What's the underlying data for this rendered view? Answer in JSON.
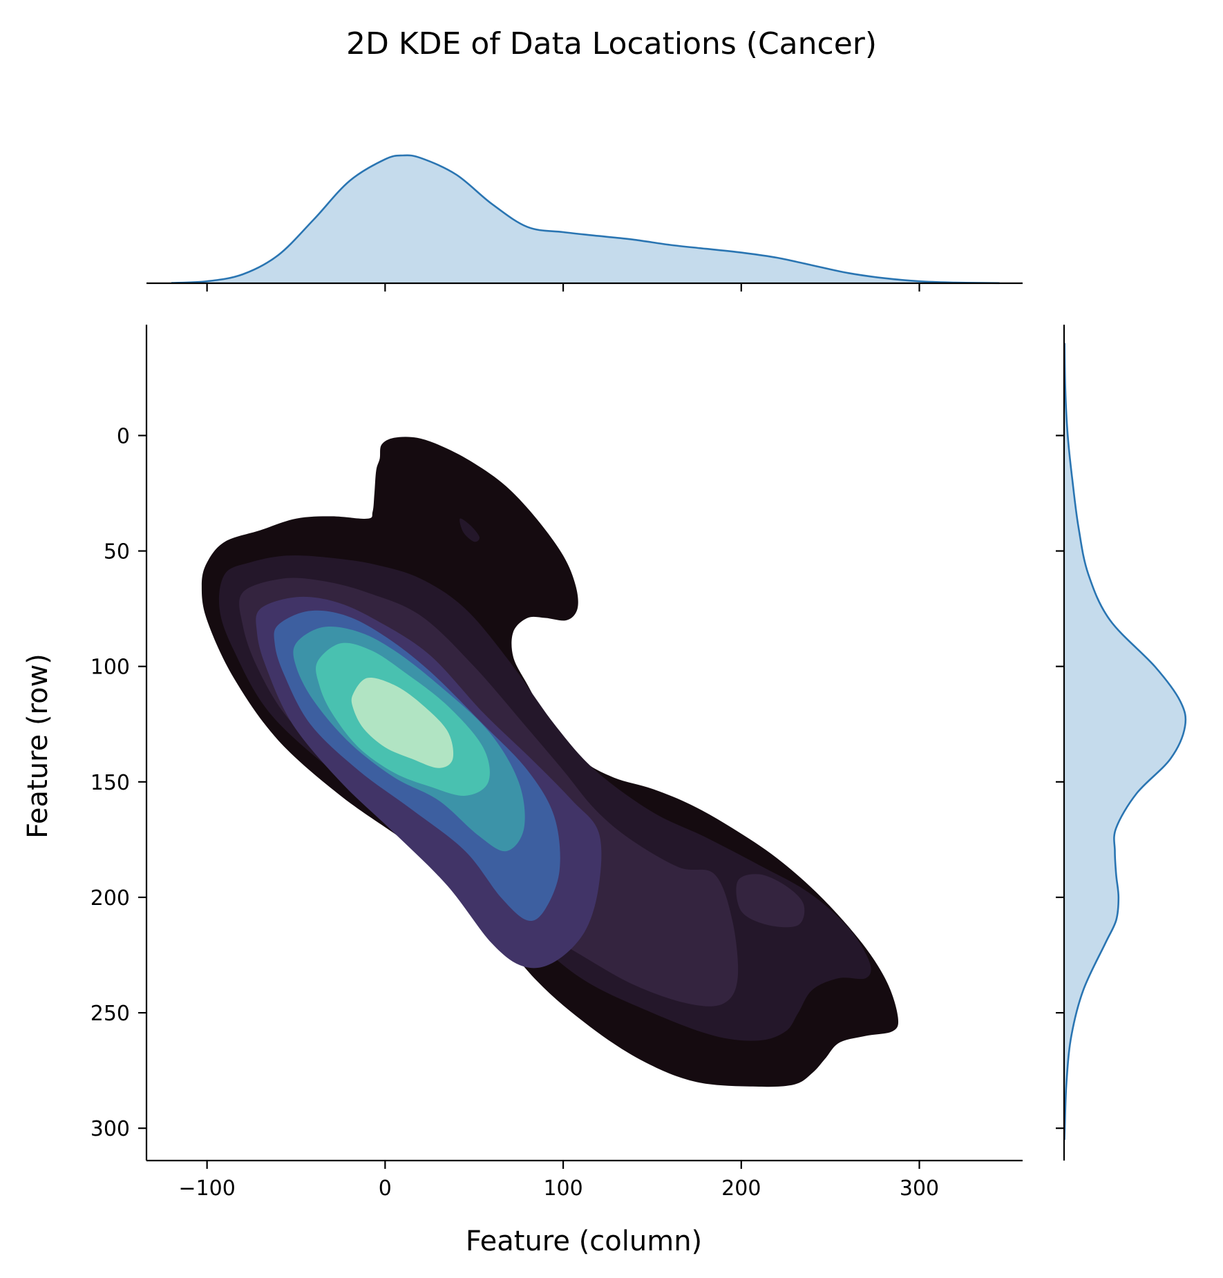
{
  "chart_data": {
    "type": "area",
    "title": "2D KDE of Data Locations (Cancer)",
    "xlabel": "Feature (column)",
    "ylabel": "Feature (row)",
    "xlim": [
      -134,
      358
    ],
    "ylim": [
      314,
      -48
    ],
    "y_axis_inverted": true,
    "grid": false,
    "legend": "none",
    "xticks": [
      -100,
      0,
      100,
      200,
      300
    ],
    "xtick_labels": [
      "−100",
      "0",
      "100",
      "200",
      "300"
    ],
    "yticks": [
      0,
      50,
      100,
      150,
      200,
      250,
      300
    ],
    "ytick_labels": [
      "0",
      "50",
      "100",
      "150",
      "200",
      "250",
      "300"
    ],
    "palette": [
      "#150b10",
      "#24172a",
      "#34243f",
      "#413467",
      "#3d5fa0",
      "#3c93a8",
      "#49c1b0",
      "#b1e4c3"
    ],
    "marginal_line_color": "#2a75b2",
    "marginal_fill_color": "#c5dbec",
    "density_peak": {
      "x": 15,
      "y": 128
    },
    "contours": [
      {
        "level": 1,
        "points": [
          [
            -3,
            10
          ],
          [
            -2,
            4
          ],
          [
            5,
            1
          ],
          [
            18,
            1
          ],
          [
            33,
            5
          ],
          [
            50,
            12
          ],
          [
            68,
            22
          ],
          [
            85,
            36
          ],
          [
            100,
            52
          ],
          [
            107,
            65
          ],
          [
            108,
            75
          ],
          [
            102,
            80
          ],
          [
            90,
            79
          ],
          [
            80,
            79
          ],
          [
            72,
            85
          ],
          [
            72,
            96
          ],
          [
            80,
            108
          ],
          [
            92,
            124
          ],
          [
            110,
            140
          ],
          [
            128,
            148
          ],
          [
            150,
            153
          ],
          [
            172,
            160
          ],
          [
            195,
            170
          ],
          [
            220,
            183
          ],
          [
            245,
            200
          ],
          [
            268,
            220
          ],
          [
            282,
            237
          ],
          [
            288,
            252
          ],
          [
            285,
            258
          ],
          [
            270,
            260
          ],
          [
            255,
            263
          ],
          [
            247,
            270
          ],
          [
            240,
            276
          ],
          [
            230,
            281
          ],
          [
            210,
            282
          ],
          [
            175,
            280
          ],
          [
            145,
            271
          ],
          [
            115,
            256
          ],
          [
            85,
            236
          ],
          [
            55,
            208
          ],
          [
            35,
            190
          ],
          [
            10,
            175
          ],
          [
            -25,
            156
          ],
          [
            -60,
            132
          ],
          [
            -85,
            105
          ],
          [
            -100,
            80
          ],
          [
            -103,
            65
          ],
          [
            -100,
            55
          ],
          [
            -90,
            46
          ],
          [
            -70,
            41
          ],
          [
            -50,
            36
          ],
          [
            -30,
            35
          ],
          [
            -10,
            36
          ],
          [
            -7,
            33
          ],
          [
            -6,
            25
          ],
          [
            -5,
            15
          ]
        ]
      },
      {
        "level": 2,
        "points": [
          [
            -90,
            60
          ],
          [
            -76,
            55
          ],
          [
            -55,
            52
          ],
          [
            -30,
            53
          ],
          [
            -5,
            56
          ],
          [
            20,
            62
          ],
          [
            45,
            75
          ],
          [
            70,
            98
          ],
          [
            95,
            125
          ],
          [
            118,
            145
          ],
          [
            150,
            163
          ],
          [
            180,
            174
          ],
          [
            210,
            186
          ],
          [
            238,
            198
          ],
          [
            260,
            213
          ],
          [
            272,
            228
          ],
          [
            270,
            235
          ],
          [
            255,
            235
          ],
          [
            240,
            240
          ],
          [
            232,
            250
          ],
          [
            225,
            258
          ],
          [
            210,
            262
          ],
          [
            185,
            260
          ],
          [
            150,
            250
          ],
          [
            110,
            235
          ],
          [
            75,
            212
          ],
          [
            45,
            188
          ],
          [
            10,
            168
          ],
          [
            -30,
            145
          ],
          [
            -65,
            120
          ],
          [
            -85,
            93
          ],
          [
            -93,
            75
          ]
        ]
      },
      {
        "level": 3,
        "points": [
          [
            -80,
            68
          ],
          [
            -58,
            62
          ],
          [
            -35,
            63
          ],
          [
            -10,
            68
          ],
          [
            20,
            78
          ],
          [
            50,
            100
          ],
          [
            78,
            125
          ],
          [
            100,
            145
          ],
          [
            118,
            162
          ],
          [
            138,
            175
          ],
          [
            165,
            187
          ],
          [
            185,
            190
          ],
          [
            195,
            210
          ],
          [
            198,
            235
          ],
          [
            190,
            246
          ],
          [
            170,
            246
          ],
          [
            140,
            238
          ],
          [
            110,
            225
          ],
          [
            75,
            208
          ],
          [
            45,
            186
          ],
          [
            10,
            166
          ],
          [
            -25,
            145
          ],
          [
            -55,
            122
          ],
          [
            -72,
            100
          ],
          [
            -80,
            82
          ]
        ]
      },
      {
        "level": 4,
        "points": [
          [
            -70,
            75
          ],
          [
            -50,
            70
          ],
          [
            -28,
            72
          ],
          [
            -5,
            80
          ],
          [
            25,
            95
          ],
          [
            55,
            120
          ],
          [
            82,
            140
          ],
          [
            105,
            158
          ],
          [
            120,
            172
          ],
          [
            120,
            195
          ],
          [
            112,
            215
          ],
          [
            95,
            228
          ],
          [
            78,
            230
          ],
          [
            60,
            220
          ],
          [
            35,
            195
          ],
          [
            5,
            172
          ],
          [
            -25,
            150
          ],
          [
            -52,
            125
          ],
          [
            -67,
            100
          ],
          [
            -72,
            85
          ]
        ]
      },
      {
        "level": 5,
        "points": [
          [
            -60,
            82
          ],
          [
            -43,
            76
          ],
          [
            -22,
            78
          ],
          [
            0,
            87
          ],
          [
            25,
            102
          ],
          [
            55,
            125
          ],
          [
            80,
            145
          ],
          [
            95,
            165
          ],
          [
            98,
            188
          ],
          [
            90,
            205
          ],
          [
            80,
            210
          ],
          [
            65,
            200
          ],
          [
            45,
            180
          ],
          [
            15,
            162
          ],
          [
            -15,
            145
          ],
          [
            -42,
            125
          ],
          [
            -57,
            103
          ],
          [
            -62,
            90
          ]
        ]
      },
      {
        "level": 6,
        "points": [
          [
            -50,
            90
          ],
          [
            -35,
            83
          ],
          [
            -15,
            85
          ],
          [
            5,
            93
          ],
          [
            30,
            108
          ],
          [
            58,
            128
          ],
          [
            75,
            150
          ],
          [
            78,
            170
          ],
          [
            68,
            180
          ],
          [
            52,
            173
          ],
          [
            30,
            158
          ],
          [
            5,
            148
          ],
          [
            -20,
            133
          ],
          [
            -40,
            115
          ],
          [
            -50,
            100
          ]
        ]
      },
      {
        "level": 7,
        "points": [
          [
            -38,
            98
          ],
          [
            -25,
            90
          ],
          [
            -8,
            93
          ],
          [
            10,
            102
          ],
          [
            35,
            117
          ],
          [
            55,
            135
          ],
          [
            58,
            150
          ],
          [
            45,
            156
          ],
          [
            25,
            152
          ],
          [
            5,
            146
          ],
          [
            -15,
            135
          ],
          [
            -30,
            120
          ],
          [
            -37,
            108
          ]
        ]
      },
      {
        "level": 8,
        "points": [
          [
            -18,
            112
          ],
          [
            -10,
            105
          ],
          [
            5,
            108
          ],
          [
            20,
            116
          ],
          [
            35,
            128
          ],
          [
            38,
            140
          ],
          [
            30,
            144
          ],
          [
            15,
            140
          ],
          [
            0,
            135
          ],
          [
            -12,
            127
          ],
          [
            -18,
            118
          ]
        ]
      }
    ],
    "extra_contours": [
      {
        "level": 3,
        "points": [
          [
            198,
            193
          ],
          [
            210,
            190
          ],
          [
            225,
            195
          ],
          [
            235,
            203
          ],
          [
            232,
            212
          ],
          [
            215,
            212
          ],
          [
            200,
            206
          ]
        ]
      },
      {
        "level": 2,
        "points": [
          [
            42,
            36
          ],
          [
            48,
            39
          ],
          [
            53,
            44
          ],
          [
            50,
            46
          ],
          [
            44,
            42
          ]
        ]
      }
    ],
    "marginal_x_density": {
      "x": [
        -120,
        -100,
        -80,
        -60,
        -40,
        -20,
        0,
        10,
        20,
        40,
        60,
        80,
        100,
        120,
        140,
        160,
        180,
        200,
        220,
        240,
        260,
        280,
        300,
        320,
        345
      ],
      "density": [
        0.002,
        0.015,
        0.07,
        0.22,
        0.5,
        0.8,
        0.97,
        1.0,
        0.98,
        0.85,
        0.62,
        0.44,
        0.4,
        0.37,
        0.34,
        0.3,
        0.27,
        0.24,
        0.2,
        0.14,
        0.08,
        0.04,
        0.015,
        0.005,
        0.001
      ]
    },
    "marginal_y_density": {
      "y": [
        -40,
        -20,
        0,
        20,
        40,
        60,
        80,
        100,
        115,
        126,
        140,
        155,
        170,
        180,
        190,
        200,
        210,
        220,
        240,
        260,
        280,
        300,
        305
      ],
      "density": [
        0.004,
        0.01,
        0.03,
        0.07,
        0.12,
        0.2,
        0.38,
        0.75,
        0.96,
        1.0,
        0.88,
        0.6,
        0.43,
        0.42,
        0.43,
        0.45,
        0.43,
        0.34,
        0.16,
        0.06,
        0.02,
        0.006,
        0.003
      ]
    }
  }
}
